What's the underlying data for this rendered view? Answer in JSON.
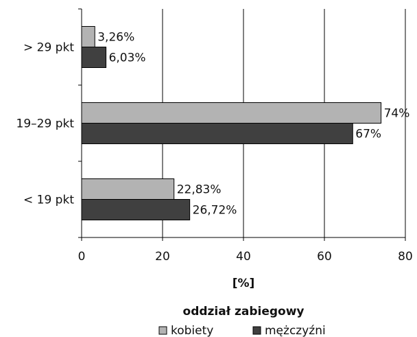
{
  "chart_data": {
    "type": "bar",
    "orientation": "horizontal",
    "categories": [
      "> 29 pkt",
      "19–29 pkt",
      "< 19 pkt"
    ],
    "series": [
      {
        "name": "kobiety",
        "values": [
          3.26,
          74,
          22.83
        ],
        "labels": [
          "3,26%",
          "74%",
          "22,83%"
        ],
        "color": "#b3b3b3"
      },
      {
        "name": "mężczyźni",
        "values": [
          6.03,
          67,
          26.72
        ],
        "labels": [
          "6,03%",
          "67%",
          "26,72%"
        ],
        "color": "#404040"
      }
    ],
    "xlim": [
      0,
      80
    ],
    "xticks": [
      0,
      20,
      40,
      60,
      80
    ],
    "xlabel": "[%]",
    "subtitle": "oddział zabiegowy",
    "grid": true,
    "legend_position": "bottom"
  }
}
